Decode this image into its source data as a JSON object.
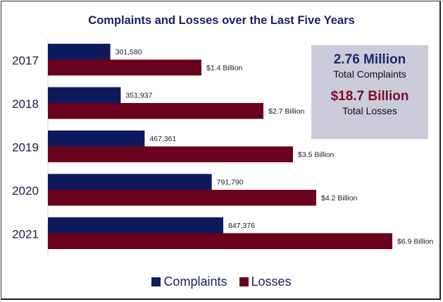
{
  "chart_data": {
    "type": "bar",
    "orientation": "horizontal",
    "title": "Complaints and Losses over the Last Five Years",
    "categories": [
      "2017",
      "2018",
      "2019",
      "2020",
      "2021"
    ],
    "series": [
      {
        "name": "Complaints",
        "color": "#0d1a5e",
        "values": [
          301580,
          351937,
          467361,
          791790,
          847376
        ],
        "labels": [
          "301,580",
          "351,937",
          "467,361",
          "791,790",
          "847,376"
        ]
      },
      {
        "name": "Losses",
        "color": "#6b001c",
        "values": [
          1.4,
          2.7,
          3.5,
          4.2,
          6.9
        ],
        "unit": "Billion USD",
        "labels": [
          "$1.4 Billion",
          "$2.7 Billion",
          "$3.5 Billion",
          "$4.2 Billion",
          "$6.9 Billion"
        ]
      }
    ],
    "xlabel": "",
    "ylabel": "",
    "grid": false,
    "legend": "bottom"
  },
  "summary": {
    "complaints_value": "2.76 Million",
    "complaints_label": "Total Complaints",
    "losses_value": "$18.7 Billion",
    "losses_label": "Total Losses"
  },
  "legend": {
    "complaints": "Complaints",
    "losses": "Losses"
  }
}
